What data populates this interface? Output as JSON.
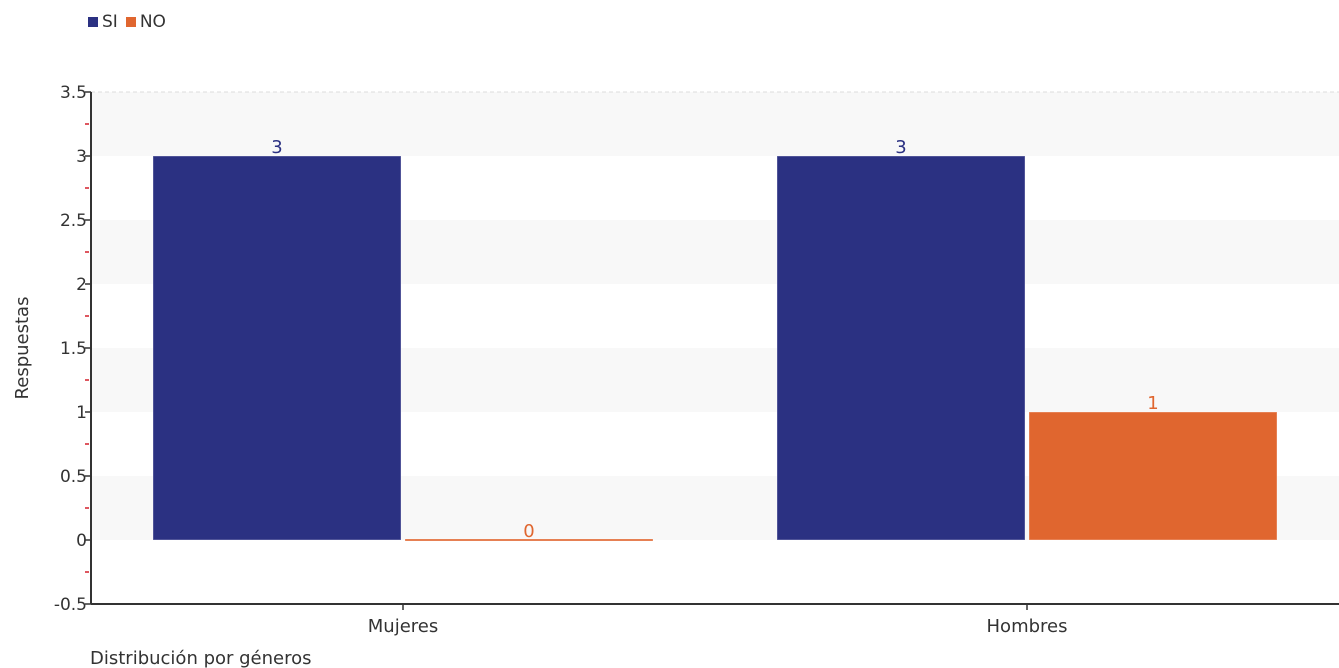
{
  "chart_data": {
    "type": "bar",
    "categories": [
      "Mujeres",
      "Hombres"
    ],
    "series": [
      {
        "name": "SI",
        "color": "#2b3182",
        "values": [
          3,
          3
        ]
      },
      {
        "name": "NO",
        "color": "#e0662f",
        "values": [
          0,
          1
        ]
      }
    ],
    "xlabel": "Distribución por géneros",
    "ylabel": "Respuestas",
    "ylim": [
      -0.5,
      3.5
    ],
    "yticks": [
      -0.5,
      0,
      0.5,
      1,
      1.5,
      2,
      2.5,
      3,
      3.5
    ],
    "ytick_labels": [
      "-0.5",
      "0",
      "0.5",
      "1",
      "1.5",
      "2",
      "2.5",
      "3",
      "3.5"
    ],
    "data_labels": [
      [
        "3",
        "3"
      ],
      [
        "0",
        "1"
      ]
    ],
    "legend_position": "top-left",
    "grid": "horizontal bands"
  }
}
